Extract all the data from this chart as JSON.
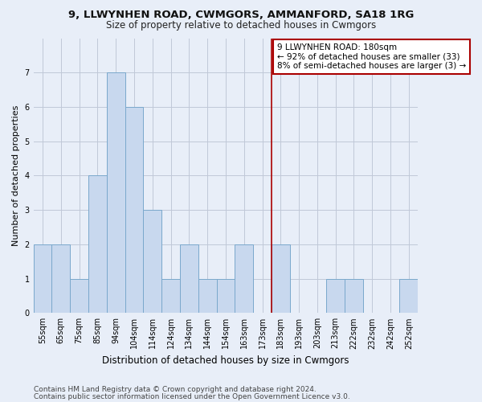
{
  "title_line1": "9, LLWYNHEN ROAD, CWMGORS, AMMANFORD, SA18 1RG",
  "title_line2": "Size of property relative to detached houses in Cwmgors",
  "xlabel": "Distribution of detached houses by size in Cwmgors",
  "ylabel": "Number of detached properties",
  "categories": [
    "55sqm",
    "65sqm",
    "75sqm",
    "85sqm",
    "94sqm",
    "104sqm",
    "114sqm",
    "124sqm",
    "134sqm",
    "144sqm",
    "154sqm",
    "163sqm",
    "173sqm",
    "183sqm",
    "193sqm",
    "203sqm",
    "213sqm",
    "222sqm",
    "232sqm",
    "242sqm",
    "252sqm"
  ],
  "values": [
    2,
    2,
    1,
    4,
    7,
    6,
    3,
    1,
    2,
    1,
    1,
    2,
    0,
    2,
    0,
    0,
    1,
    1,
    0,
    0,
    1
  ],
  "bar_color": "#c8d8ee",
  "bar_edge_color": "#7aa8cc",
  "vline_x_index": 13,
  "vline_color": "#aa0000",
  "annotation_text": "9 LLWYNHEN ROAD: 180sqm\n← 92% of detached houses are smaller (33)\n8% of semi-detached houses are larger (3) →",
  "annotation_box_color": "#ffffff",
  "annotation_box_edge_color": "#aa0000",
  "ylim": [
    0,
    8
  ],
  "yticks": [
    0,
    1,
    2,
    3,
    4,
    5,
    6,
    7
  ],
  "grid_color": "#c0c8d8",
  "bg_color": "#e8eef8",
  "footer_line1": "Contains HM Land Registry data © Crown copyright and database right 2024.",
  "footer_line2": "Contains public sector information licensed under the Open Government Licence v3.0.",
  "title_fontsize": 9.5,
  "subtitle_fontsize": 8.5,
  "xlabel_fontsize": 8.5,
  "ylabel_fontsize": 8,
  "tick_fontsize": 7,
  "annotation_fontsize": 7.5,
  "footer_fontsize": 6.5
}
